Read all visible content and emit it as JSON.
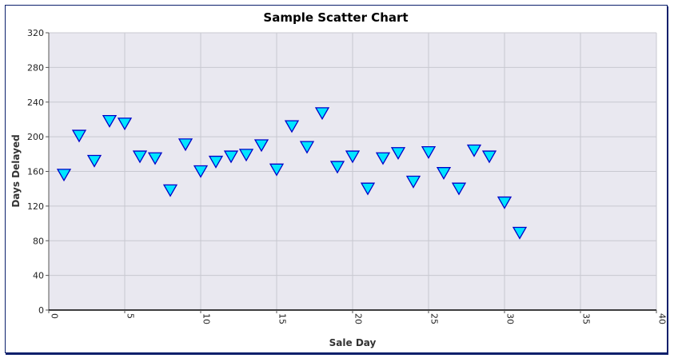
{
  "chart_data": {
    "type": "scatter",
    "title": "Sample Scatter Chart",
    "xlabel": "Sale Day",
    "ylabel": "Days Delayed",
    "xlim": [
      0,
      40
    ],
    "ylim": [
      0,
      320
    ],
    "x_ticks": [
      0,
      5,
      10,
      15,
      20,
      25,
      30,
      35,
      40
    ],
    "y_ticks": [
      0,
      40,
      80,
      120,
      160,
      200,
      240,
      280,
      320
    ],
    "grid": true,
    "legend": "none",
    "marker": "down-triangle",
    "colors": {
      "marker_fill": "#00e5ff",
      "marker_stroke": "#0000c8",
      "plot_bg": "#e9e8f0",
      "grid": "#c8c8d0"
    },
    "x": [
      1,
      2,
      3,
      4,
      5,
      6,
      7,
      8,
      9,
      10,
      11,
      12,
      13,
      14,
      15,
      16,
      17,
      18,
      19,
      20,
      21,
      22,
      23,
      24,
      25,
      26,
      27,
      28,
      29,
      30,
      31
    ],
    "y": [
      156,
      201,
      172,
      218,
      215,
      177,
      175,
      138,
      191,
      160,
      171,
      177,
      179,
      190,
      162,
      212,
      188,
      227,
      165,
      177,
      140,
      175,
      181,
      148,
      182,
      158,
      140,
      184,
      177,
      124,
      89
    ]
  }
}
